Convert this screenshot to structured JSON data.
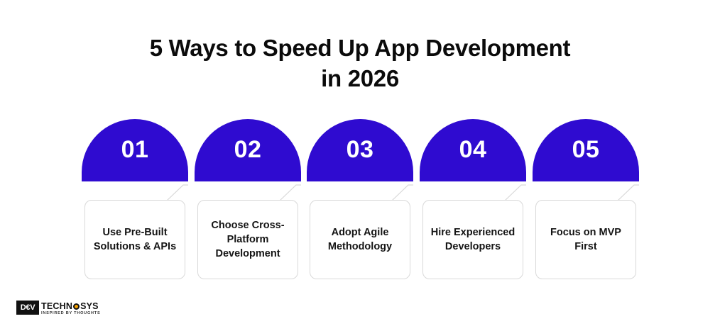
{
  "title": {
    "line1": "5 Ways to Speed Up App Development",
    "line2": "in 2026"
  },
  "colors": {
    "accent": "#2f0bd0",
    "card_border": "#d9d9d9",
    "text": "#111111"
  },
  "steps": [
    {
      "number": "01",
      "text": "Use Pre-Built Solutions & APIs"
    },
    {
      "number": "02",
      "text": "Choose Cross-Platform Development"
    },
    {
      "number": "03",
      "text": "Adopt Agile Methodology"
    },
    {
      "number": "04",
      "text": "Hire Experienced Developers"
    },
    {
      "number": "05",
      "text": "Focus on MVP First"
    }
  ],
  "logo": {
    "mark": "D€V",
    "name_part1": "TECHN",
    "name_part2": "SYS",
    "tagline": "INSPIRED BY THOUGHTS",
    "icon": "gear-icon"
  }
}
